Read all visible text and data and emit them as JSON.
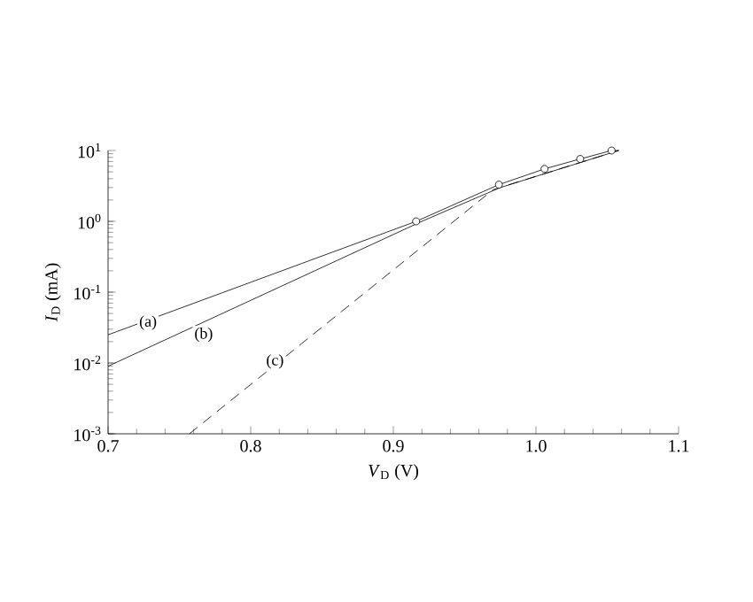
{
  "chart_data": {
    "type": "line",
    "xlabel": "*V*$_{D}$ (V)",
    "ylabel": "*I*$_{D}$ (mA)",
    "log": "y",
    "xlim": [
      0.7,
      1.1
    ],
    "xticks": [
      {
        "value": 0.7,
        "label": "0.7"
      },
      {
        "value": 0.8,
        "label": "0.8"
      },
      {
        "value": 0.9,
        "label": "0.9"
      },
      {
        "value": 1.0,
        "label": "1.0"
      },
      {
        "value": 1.1,
        "label": "1.1"
      }
    ],
    "ylim": [
      0.001,
      10
    ],
    "yticks": [
      {
        "value": 0.001,
        "label": "10$^{-3}$"
      },
      {
        "value": 0.01,
        "label": "10$^{-2}$"
      },
      {
        "value": 0.1,
        "label": "10$^{-1}$"
      },
      {
        "value": 1,
        "label": "10$^{0}$"
      },
      {
        "value": 10,
        "label": "10$^{1}$"
      }
    ],
    "series": [
      {
        "color": "#000000",
        "line_style": "solid",
        "marker": "none",
        "x": [
          0.7,
          0.916,
          0.974,
          1.006,
          1.031,
          1.053,
          1.058
        ],
        "values": [
          0.025,
          1.0,
          3.3,
          5.5,
          7.6,
          10,
          10
        ]
      },
      {
        "color": "#000000",
        "line_style": "solid",
        "marker": "none",
        "x": [
          0.7,
          0.92,
          0.975,
          1.058
        ],
        "values": [
          0.009,
          1.0,
          3.0,
          10
        ]
      },
      {
        "color": "#000000",
        "line_style": "dashed",
        "marker": "none",
        "x": [
          0.757,
          0.97,
          1.058
        ],
        "values": [
          0.001,
          2.8,
          10
        ]
      },
      {
        "type": "scatter",
        "color": "#000000",
        "marker": "circle",
        "x": [
          0.916,
          0.974,
          1.006,
          1.031,
          1.053
        ],
        "values": [
          1.0,
          3.3,
          5.5,
          7.6,
          10
        ]
      }
    ],
    "annotations": [
      {
        "text": "(a)",
        "x": 0.728,
        "y": 0.037
      },
      {
        "text": "(b)",
        "x": 0.767,
        "y": 0.025
      },
      {
        "text": "(c)",
        "x": 0.817,
        "y": 0.0105
      }
    ]
  }
}
